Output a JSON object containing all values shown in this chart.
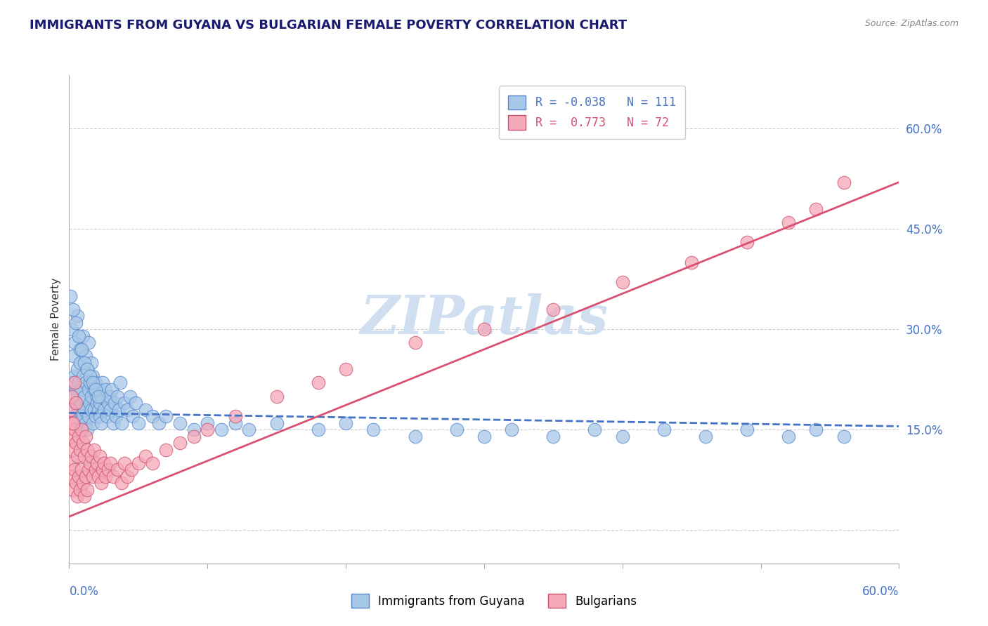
{
  "title": "IMMIGRANTS FROM GUYANA VS BULGARIAN FEMALE POVERTY CORRELATION CHART",
  "source": "Source: ZipAtlas.com",
  "ylabel": "Female Poverty",
  "xmin": 0.0,
  "xmax": 0.6,
  "ymin": -0.05,
  "ymax": 0.68,
  "yticks": [
    0.0,
    0.15,
    0.3,
    0.45,
    0.6
  ],
  "ytick_labels": [
    "",
    "15.0%",
    "30.0%",
    "45.0%",
    "60.0%"
  ],
  "xtick_positions": [
    0.0,
    0.1,
    0.2,
    0.3,
    0.4,
    0.5,
    0.6
  ],
  "blue_R": -0.038,
  "blue_N": 111,
  "pink_R": 0.773,
  "pink_N": 72,
  "blue_color": "#a8c8e8",
  "pink_color": "#f5a8b8",
  "blue_edge_color": "#5588cc",
  "pink_edge_color": "#cc5070",
  "blue_line_color": "#4472c4",
  "pink_line_color": "#d95070",
  "grid_color": "#cccccc",
  "title_color": "#1a1a6e",
  "label_color": "#4472c4",
  "watermark_color": "#d0dff0",
  "legend_label1": "Immigrants from Guyana",
  "legend_label2": "Bulgarians",
  "blue_scatter_x": [
    0.001,
    0.002,
    0.003,
    0.003,
    0.004,
    0.004,
    0.005,
    0.005,
    0.006,
    0.006,
    0.007,
    0.007,
    0.008,
    0.008,
    0.009,
    0.009,
    0.01,
    0.01,
    0.011,
    0.011,
    0.012,
    0.012,
    0.013,
    0.013,
    0.014,
    0.014,
    0.015,
    0.015,
    0.016,
    0.016,
    0.017,
    0.017,
    0.018,
    0.018,
    0.019,
    0.019,
    0.02,
    0.02,
    0.021,
    0.021,
    0.022,
    0.022,
    0.023,
    0.023,
    0.024,
    0.025,
    0.026,
    0.027,
    0.028,
    0.029,
    0.03,
    0.031,
    0.032,
    0.033,
    0.034,
    0.035,
    0.036,
    0.037,
    0.038,
    0.04,
    0.042,
    0.044,
    0.046,
    0.048,
    0.05,
    0.055,
    0.06,
    0.065,
    0.07,
    0.08,
    0.09,
    0.1,
    0.11,
    0.12,
    0.13,
    0.15,
    0.18,
    0.2,
    0.22,
    0.25,
    0.28,
    0.3,
    0.32,
    0.35,
    0.38,
    0.4,
    0.43,
    0.46,
    0.49,
    0.52,
    0.54,
    0.56,
    0.002,
    0.004,
    0.006,
    0.008,
    0.01,
    0.012,
    0.014,
    0.016,
    0.001,
    0.003,
    0.005,
    0.007,
    0.009,
    0.011,
    0.013,
    0.015,
    0.017,
    0.019,
    0.021
  ],
  "blue_scatter_y": [
    0.22,
    0.2,
    0.26,
    0.18,
    0.23,
    0.17,
    0.21,
    0.19,
    0.24,
    0.16,
    0.22,
    0.18,
    0.25,
    0.15,
    0.21,
    0.19,
    0.23,
    0.17,
    0.2,
    0.18,
    0.22,
    0.16,
    0.24,
    0.15,
    0.21,
    0.17,
    0.19,
    0.22,
    0.18,
    0.2,
    0.23,
    0.16,
    0.21,
    0.18,
    0.22,
    0.17,
    0.2,
    0.19,
    0.18,
    0.21,
    0.17,
    0.19,
    0.2,
    0.16,
    0.22,
    0.18,
    0.21,
    0.17,
    0.19,
    0.2,
    0.18,
    0.21,
    0.16,
    0.19,
    0.17,
    0.2,
    0.18,
    0.22,
    0.16,
    0.19,
    0.18,
    0.2,
    0.17,
    0.19,
    0.16,
    0.18,
    0.17,
    0.16,
    0.17,
    0.16,
    0.15,
    0.16,
    0.15,
    0.16,
    0.15,
    0.16,
    0.15,
    0.16,
    0.15,
    0.14,
    0.15,
    0.14,
    0.15,
    0.14,
    0.15,
    0.14,
    0.15,
    0.14,
    0.15,
    0.14,
    0.15,
    0.14,
    0.3,
    0.28,
    0.32,
    0.27,
    0.29,
    0.26,
    0.28,
    0.25,
    0.35,
    0.33,
    0.31,
    0.29,
    0.27,
    0.25,
    0.24,
    0.23,
    0.22,
    0.21,
    0.2
  ],
  "pink_scatter_x": [
    0.001,
    0.001,
    0.002,
    0.002,
    0.003,
    0.003,
    0.004,
    0.004,
    0.005,
    0.005,
    0.006,
    0.006,
    0.007,
    0.007,
    0.008,
    0.008,
    0.009,
    0.009,
    0.01,
    0.01,
    0.011,
    0.011,
    0.012,
    0.012,
    0.013,
    0.013,
    0.014,
    0.015,
    0.016,
    0.017,
    0.018,
    0.019,
    0.02,
    0.021,
    0.022,
    0.023,
    0.024,
    0.025,
    0.026,
    0.028,
    0.03,
    0.032,
    0.035,
    0.038,
    0.04,
    0.042,
    0.045,
    0.05,
    0.055,
    0.06,
    0.07,
    0.08,
    0.09,
    0.1,
    0.12,
    0.15,
    0.18,
    0.2,
    0.25,
    0.3,
    0.35,
    0.4,
    0.45,
    0.49,
    0.52,
    0.54,
    0.56,
    0.001,
    0.002,
    0.003,
    0.004,
    0.005
  ],
  "pink_scatter_y": [
    0.08,
    0.14,
    0.1,
    0.16,
    0.06,
    0.12,
    0.09,
    0.15,
    0.07,
    0.13,
    0.05,
    0.11,
    0.08,
    0.14,
    0.06,
    0.12,
    0.09,
    0.15,
    0.07,
    0.13,
    0.05,
    0.11,
    0.08,
    0.14,
    0.06,
    0.12,
    0.09,
    0.1,
    0.11,
    0.08,
    0.12,
    0.09,
    0.1,
    0.08,
    0.11,
    0.07,
    0.09,
    0.1,
    0.08,
    0.09,
    0.1,
    0.08,
    0.09,
    0.07,
    0.1,
    0.08,
    0.09,
    0.1,
    0.11,
    0.1,
    0.12,
    0.13,
    0.14,
    0.15,
    0.17,
    0.2,
    0.22,
    0.24,
    0.28,
    0.3,
    0.33,
    0.37,
    0.4,
    0.43,
    0.46,
    0.48,
    0.52,
    0.18,
    0.2,
    0.16,
    0.22,
    0.19
  ],
  "blue_line_start_x": 0.0,
  "blue_line_end_x": 0.6,
  "blue_line_start_y": 0.175,
  "blue_line_end_y": 0.155,
  "pink_line_start_x": 0.0,
  "pink_line_end_x": 0.6,
  "pink_line_start_y": 0.02,
  "pink_line_end_y": 0.52
}
